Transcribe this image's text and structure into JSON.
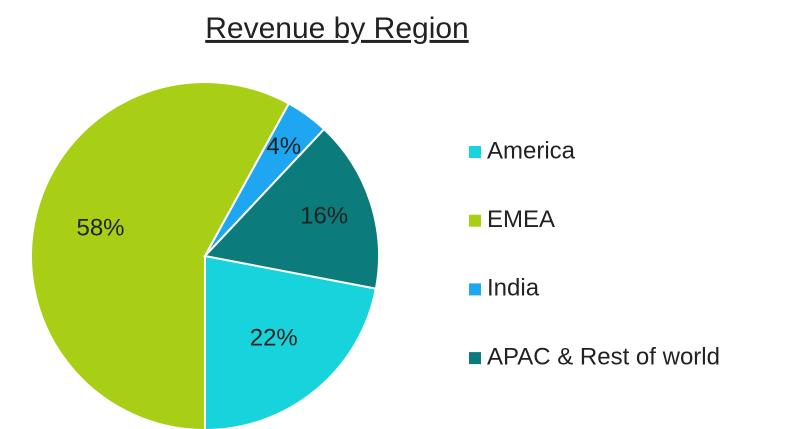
{
  "chart_data": {
    "type": "pie",
    "title": "Revenue by Region",
    "categories": [
      "America",
      "EMEA",
      "India",
      "APAC & Rest of world"
    ],
    "values": [
      22,
      58,
      4,
      16
    ],
    "value_labels": [
      "22%",
      "58%",
      "4%",
      "16%"
    ],
    "colors": [
      "#17d4dc",
      "#a8cf16",
      "#1ea7f0",
      "#0b7b7b"
    ],
    "legend": "right"
  }
}
